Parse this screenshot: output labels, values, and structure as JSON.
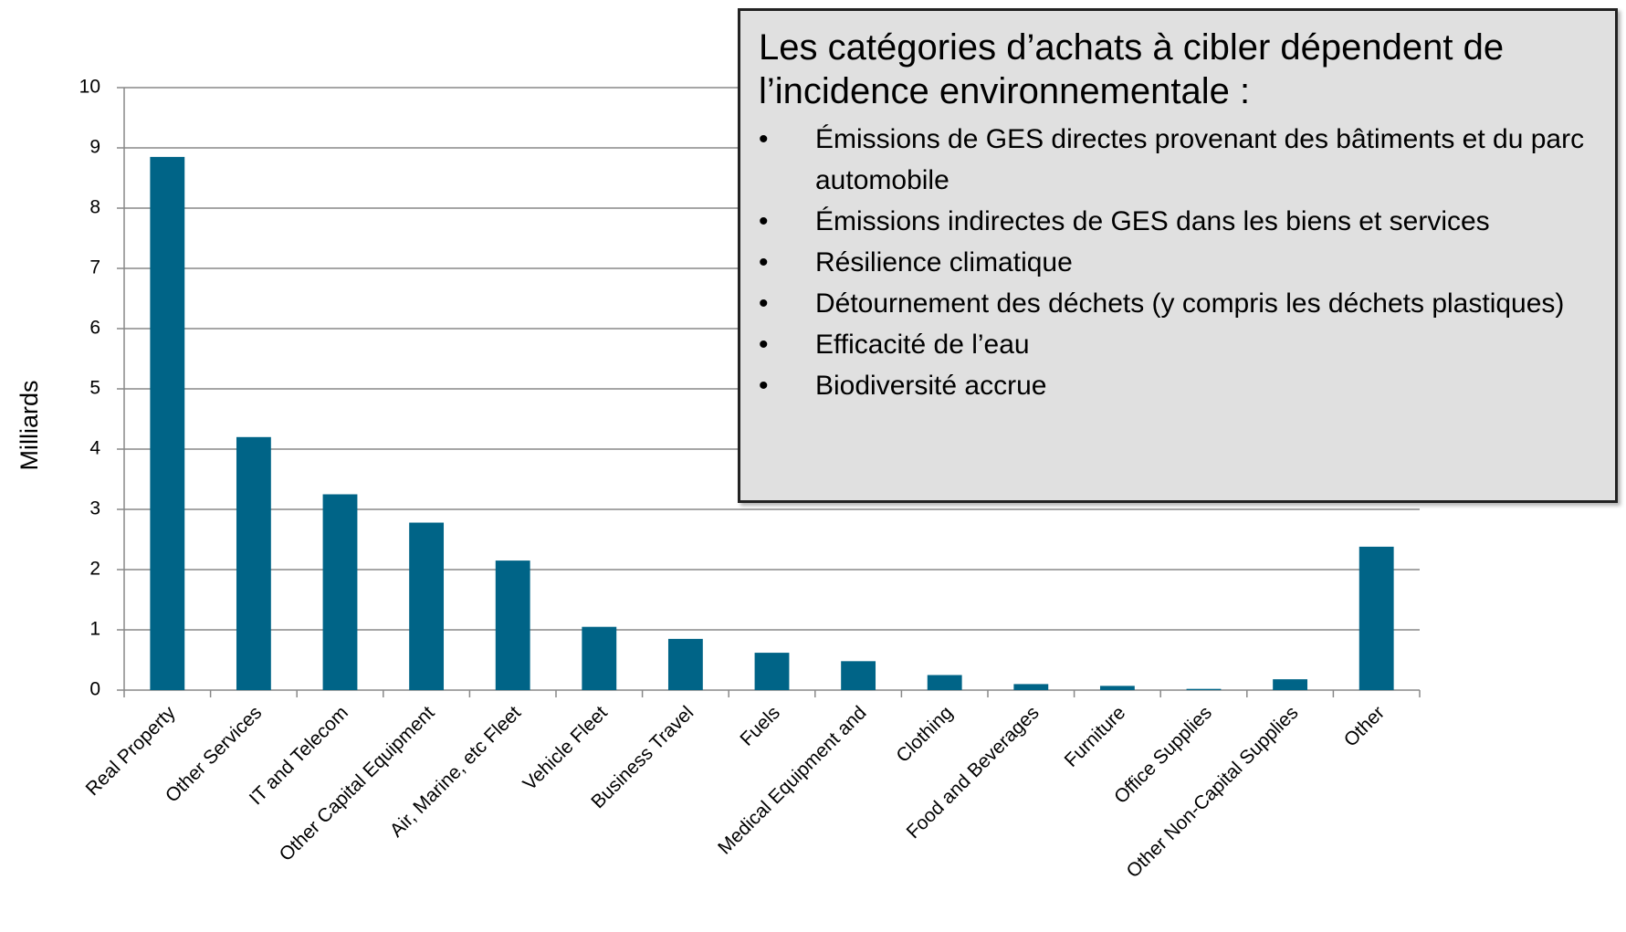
{
  "chart_data": {
    "type": "bar",
    "y_label": "Milliards",
    "categories": [
      "Real Property",
      "Other Services",
      "IT and Telecom",
      "Other Capital Equipment",
      "Air, Marine, etc Fleet",
      "Vehicle Fleet",
      "Business Travel",
      "Fuels",
      "Medical Equipment and",
      "Clothing",
      "Food and Beverages",
      "Furniture",
      "Office Supplies",
      "Other Non-Capital Supplies",
      "Other"
    ],
    "values": [
      8.85,
      4.2,
      3.25,
      2.78,
      2.15,
      1.05,
      0.85,
      0.62,
      0.48,
      0.25,
      0.1,
      0.07,
      0.02,
      0.18,
      2.38
    ],
    "color": "#006487",
    "ylim": [
      0,
      10
    ],
    "yticks": [
      0,
      1,
      2,
      3,
      4,
      5,
      6,
      7,
      8,
      9,
      10
    ],
    "grid": true,
    "annotation": {
      "title": "Les catégories d’achats à cibler dépendent de l’incidence environnementale :",
      "bullets": [
        "Émissions de GES directes provenant des bâtiments et du parc automobile",
        "Émissions indirectes de GES dans les biens et services",
        "Résilience climatique",
        "Détournement des déchets (y compris les déchets plastiques)",
        "Efficacité de l’eau",
        "Biodiversité accrue"
      ]
    }
  }
}
